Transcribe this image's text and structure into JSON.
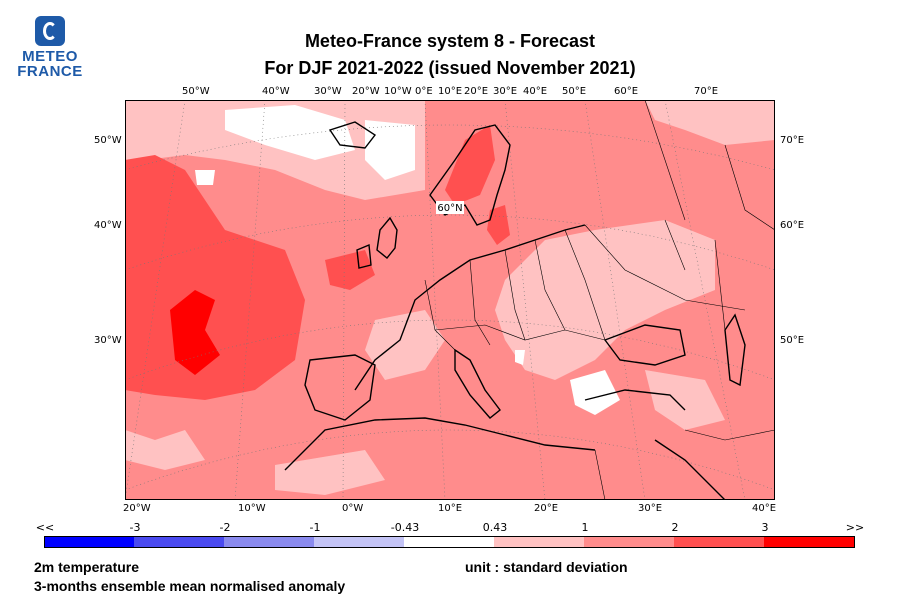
{
  "logo": {
    "line1": "METEO",
    "line2": "FRANCE"
  },
  "title": {
    "line1": "Meteo-France system 8  -  Forecast",
    "line2": "For DJF 2021-2022      (issued November 2021)"
  },
  "top_lon_labels": [
    "50°W",
    "40°W",
    "30°W",
    "20°W",
    "10°W",
    "0°E",
    "10°E",
    "20°E",
    "30°E",
    "40°E",
    "50°E",
    "60°E",
    "70°E"
  ],
  "left_labels": [
    "50°W",
    "40°W",
    "30°W"
  ],
  "right_labels": [
    "70°E",
    "60°E",
    "50°E"
  ],
  "bottom_lon_labels": [
    "20°W",
    "10°W",
    "0°W",
    "10°E",
    "20°E",
    "30°E",
    "40°E"
  ],
  "inner_label": "60°N",
  "colorbar": {
    "labels": [
      "<<",
      "-3",
      "-2",
      "-1",
      "-0.43",
      "0.43",
      "1",
      "2",
      "3",
      ">>"
    ],
    "colors": [
      "#0000ff",
      "#4a4af0",
      "#8a8aee",
      "#c4c4f6",
      "#ffffff",
      "#ffc2c2",
      "#ff8c8c",
      "#ff5050",
      "#ff0000"
    ]
  },
  "variable": "2m temperature",
  "description": "3-months ensemble mean normalised anomaly",
  "unit": "unit : standard deviation"
}
